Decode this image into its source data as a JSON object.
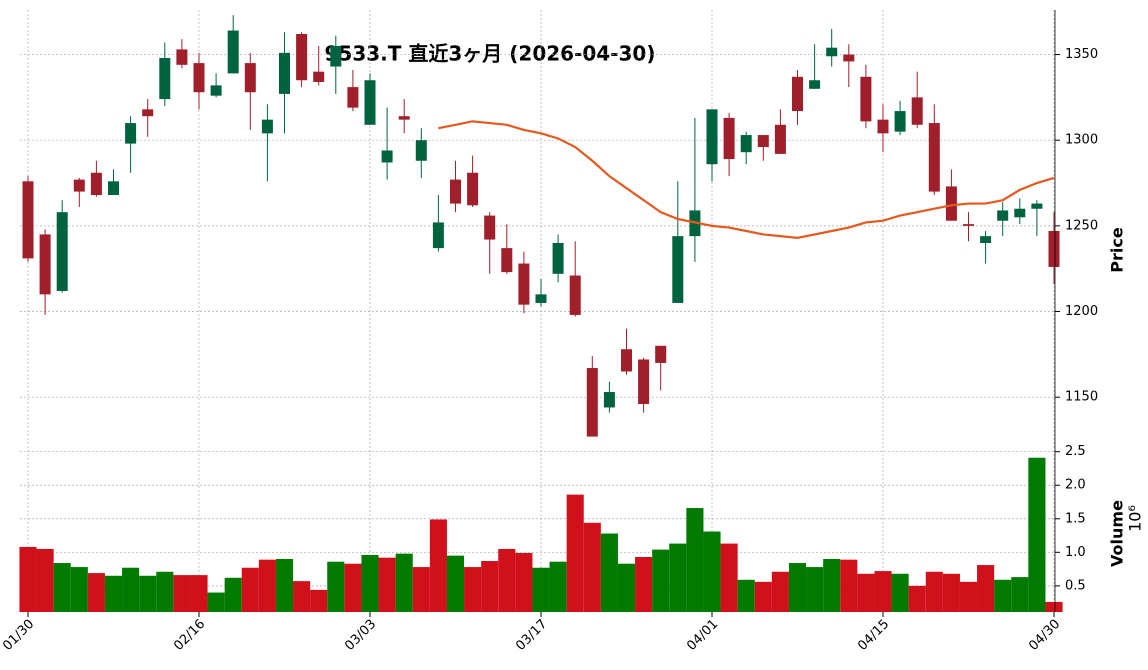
{
  "chart_data": [
    {
      "type": "candlestick",
      "title": "9533.T  直近3ヶ月  (2026-04-30)",
      "ylabel": "Price",
      "categories": [
        "01/30",
        null,
        null,
        null,
        null,
        null,
        null,
        null,
        null,
        null,
        "02/16",
        null,
        null,
        null,
        null,
        null,
        null,
        null,
        null,
        null,
        "03/03",
        null,
        null,
        null,
        null,
        null,
        null,
        null,
        null,
        null,
        "03/17",
        null,
        null,
        null,
        null,
        null,
        null,
        null,
        null,
        null,
        "04/01",
        null,
        null,
        null,
        null,
        null,
        null,
        null,
        null,
        null,
        "04/15",
        null,
        null,
        null,
        null,
        null,
        null,
        null,
        null,
        null,
        "04/30"
      ],
      "open": [
        1276,
        1245,
        1212,
        1277,
        1281,
        1268,
        1298,
        1318,
        1324,
        1353,
        1345,
        1326,
        1339,
        1345,
        1304,
        1327,
        1362,
        1340,
        1343,
        1331,
        1309,
        1287,
        1314,
        1288,
        1237,
        1277,
        1281,
        1256,
        1237,
        1228,
        1205,
        1222,
        1221,
        1167,
        1144,
        1178,
        1172,
        1180,
        1205,
        1244,
        1286,
        1313,
        1293,
        1303,
        1309,
        1337,
        1330,
        1349,
        1350,
        1337,
        1312,
        1305,
        1325,
        1310,
        1273,
        1251,
        1240,
        1253,
        1255,
        1260,
        1247
      ],
      "high": [
        1279,
        1248,
        1265,
        1278,
        1288,
        1283,
        1314,
        1324,
        1357,
        1359,
        1351,
        1339,
        1373,
        1351,
        1321,
        1363,
        1363,
        1355,
        1361,
        1341,
        1339,
        1319,
        1324,
        1307,
        1268,
        1288,
        1291,
        1258,
        1251,
        1235,
        1219,
        1245,
        1241,
        1174,
        1159,
        1190,
        1173,
        1180,
        1276,
        1313,
        1318,
        1316,
        1305,
        1303,
        1318,
        1341,
        1356,
        1365,
        1356,
        1344,
        1321,
        1323,
        1340,
        1321,
        1283,
        1258,
        1247,
        1264,
        1266,
        1265,
        1258
      ],
      "low": [
        1229,
        1198,
        1211,
        1261,
        1267,
        1268,
        1281,
        1302,
        1320,
        1342,
        1318,
        1325,
        1339,
        1306,
        1276,
        1304,
        1331,
        1332,
        1327,
        1317,
        1309,
        1277,
        1304,
        1278,
        1235,
        1258,
        1261,
        1222,
        1222,
        1199,
        1203,
        1217,
        1197,
        1127,
        1141,
        1163,
        1141,
        1154,
        1205,
        1229,
        1276,
        1279,
        1286,
        1288,
        1292,
        1309,
        1330,
        1343,
        1331,
        1307,
        1293,
        1303,
        1307,
        1268,
        1253,
        1241,
        1228,
        1244,
        1251,
        1244,
        1216
      ],
      "close": [
        1231,
        1210,
        1258,
        1270,
        1268,
        1276,
        1310,
        1314,
        1348,
        1344,
        1328,
        1332,
        1364,
        1328,
        1312,
        1351,
        1335,
        1334,
        1355,
        1319,
        1335,
        1294,
        1312,
        1300,
        1252,
        1263,
        1262,
        1242,
        1223,
        1204,
        1210,
        1240,
        1198,
        1127,
        1153,
        1165,
        1146,
        1170,
        1244,
        1259,
        1318,
        1289,
        1303,
        1296,
        1292,
        1317,
        1335,
        1354,
        1346,
        1311,
        1304,
        1317,
        1309,
        1270,
        1253,
        1250,
        1244,
        1259,
        1260,
        1263,
        1226
      ],
      "up_color": "#006340",
      "down_color": "#a01f2b",
      "line": {
        "color": "#e8581c",
        "values": [
          null,
          null,
          null,
          null,
          null,
          null,
          null,
          null,
          null,
          null,
          null,
          null,
          null,
          null,
          null,
          null,
          null,
          null,
          null,
          null,
          null,
          null,
          null,
          null,
          1307,
          1309,
          1311,
          1310,
          1309,
          1306,
          1304,
          1301,
          1296,
          1288,
          1279,
          1272,
          1265,
          1258,
          1254,
          1252,
          1250,
          1249,
          1247,
          1245,
          1244,
          1243,
          1245,
          1247,
          1249,
          1252,
          1253,
          1256,
          1258,
          1260,
          1262,
          1263,
          1263,
          1265,
          1271,
          1275,
          1278
        ]
      },
      "ylim": [
        1125,
        1376
      ],
      "yticks": [
        1150,
        1200,
        1250,
        1300,
        1350
      ],
      "grid": true
    },
    {
      "type": "bar",
      "ylabel": "Volume",
      "offset_label": "10⁶",
      "values": [
        1.08,
        1.05,
        0.84,
        0.78,
        0.69,
        0.65,
        0.77,
        0.65,
        0.71,
        0.66,
        0.66,
        0.4,
        0.62,
        0.77,
        0.89,
        0.9,
        0.57,
        0.44,
        0.86,
        0.83,
        0.96,
        0.92,
        0.98,
        0.78,
        1.49,
        0.95,
        0.78,
        0.87,
        1.05,
        0.99,
        0.77,
        0.86,
        1.86,
        1.44,
        1.28,
        0.83,
        0.93,
        1.04,
        1.13,
        1.66,
        1.31,
        1.13,
        0.59,
        0.56,
        0.71,
        0.84,
        0.78,
        0.9,
        0.89,
        0.68,
        0.72,
        0.68,
        0.5,
        0.71,
        0.68,
        0.56,
        0.81,
        0.59,
        0.63,
        2.41,
        0.26
      ],
      "colors": [
        "#d0101a",
        "#d0101a",
        "#007a00",
        "#007a00",
        "#d0101a",
        "#007a00",
        "#007a00",
        "#007a00",
        "#007a00",
        "#d0101a",
        "#d0101a",
        "#007a00",
        "#007a00",
        "#d0101a",
        "#d0101a",
        "#007a00",
        "#d0101a",
        "#d0101a",
        "#007a00",
        "#d0101a",
        "#007a00",
        "#d0101a",
        "#007a00",
        "#d0101a",
        "#d0101a",
        "#007a00",
        "#d0101a",
        "#d0101a",
        "#d0101a",
        "#d0101a",
        "#007a00",
        "#007a00",
        "#d0101a",
        "#d0101a",
        "#007a00",
        "#007a00",
        "#d0101a",
        "#007a00",
        "#007a00",
        "#007a00",
        "#007a00",
        "#d0101a",
        "#007a00",
        "#d0101a",
        "#d0101a",
        "#007a00",
        "#007a00",
        "#007a00",
        "#d0101a",
        "#d0101a",
        "#d0101a",
        "#007a00",
        "#d0101a",
        "#d0101a",
        "#d0101a",
        "#d0101a",
        "#d0101a",
        "#007a00",
        "#007a00",
        "#007a00",
        "#d0101a"
      ],
      "ylim": [
        0.11,
        2.6
      ],
      "yticks": [
        0.5,
        {
          "value": 1,
          "label": "1.0"
        },
        1.5,
        {
          "value": 2,
          "label": "2.0"
        },
        2.5
      ],
      "grid": true
    }
  ]
}
